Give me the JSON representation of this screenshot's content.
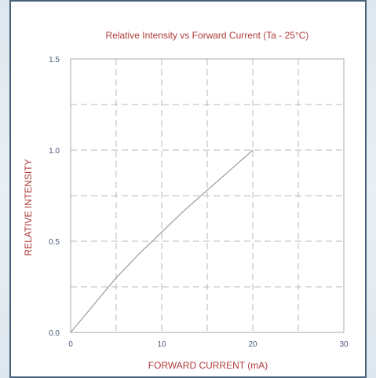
{
  "chart_data": {
    "type": "line",
    "title": "Relative Intensity vs Forward Current (Ta - 25°C)",
    "xlabel": "FORWARD CURRENT (mA)",
    "ylabel": "RELATIVE INTENSITY",
    "xlim": [
      0,
      30
    ],
    "ylim": [
      0,
      1.5
    ],
    "x_ticks": [
      "0",
      "10",
      "20",
      "30"
    ],
    "y_ticks": [
      "0.0",
      "0.5",
      "1.0",
      "1.5"
    ],
    "grid": true,
    "legend": "none",
    "series": [
      {
        "x": [
          0,
          2.5,
          5,
          7.5,
          10,
          12.5,
          15,
          17.5,
          20
        ],
        "y": [
          0,
          0.15,
          0.3,
          0.43,
          0.55,
          0.67,
          0.78,
          0.89,
          1.0
        ]
      }
    ]
  },
  "colors": {
    "title": "#b03a3a",
    "axis_label": "#b03a3a",
    "tick_label": "#4a5a78",
    "grid": "#b9b9b9",
    "line": "#9a9a9a",
    "frame": "#4a5f7a"
  }
}
